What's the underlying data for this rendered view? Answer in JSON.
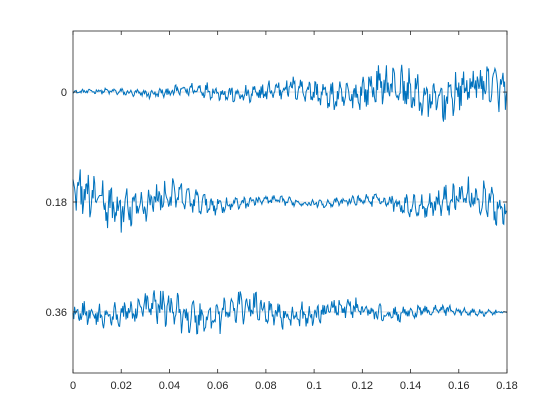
{
  "chart_data": {
    "type": "line",
    "title": "",
    "xlabel": "",
    "ylabel": "",
    "xlim": [
      0,
      0.18
    ],
    "x_ticks": [
      "0",
      "0.02",
      "0.04",
      "0.06",
      "0.08",
      "0.1",
      "0.12",
      "0.14",
      "0.16",
      "0.18"
    ],
    "x_tick_values": [
      0,
      0.02,
      0.04,
      0.06,
      0.08,
      0.1,
      0.12,
      0.14,
      0.16,
      0.18
    ],
    "y_ticks": [
      "0",
      "0.18",
      "0.36"
    ],
    "y_tick_values": [
      0,
      0.18,
      0.36
    ],
    "y_direction": "reversed",
    "ylim": [
      -0.1,
      0.46
    ],
    "grid": "horizontal baselines at each offset",
    "line_color": "#0072BD",
    "baseline_color": "#d9d9d9",
    "series": [
      {
        "offset": 0,
        "amplitude_envelope": [
          [
            0,
            0.003
          ],
          [
            0.02,
            0.006
          ],
          [
            0.04,
            0.01
          ],
          [
            0.06,
            0.014
          ],
          [
            0.08,
            0.018
          ],
          [
            0.1,
            0.022
          ],
          [
            0.12,
            0.03
          ],
          [
            0.14,
            0.038
          ],
          [
            0.16,
            0.042
          ],
          [
            0.18,
            0.035
          ]
        ]
      },
      {
        "offset": 0.18,
        "amplitude_envelope": [
          [
            0,
            0.04
          ],
          [
            0.02,
            0.04
          ],
          [
            0.04,
            0.028
          ],
          [
            0.06,
            0.015
          ],
          [
            0.08,
            0.008
          ],
          [
            0.1,
            0.006
          ],
          [
            0.12,
            0.01
          ],
          [
            0.14,
            0.018
          ],
          [
            0.16,
            0.028
          ],
          [
            0.18,
            0.036
          ]
        ]
      },
      {
        "offset": 0.36,
        "amplitude_envelope": [
          [
            0,
            0.018
          ],
          [
            0.02,
            0.022
          ],
          [
            0.04,
            0.03
          ],
          [
            0.06,
            0.03
          ],
          [
            0.08,
            0.025
          ],
          [
            0.1,
            0.022
          ],
          [
            0.12,
            0.017
          ],
          [
            0.14,
            0.012
          ],
          [
            0.16,
            0.008
          ],
          [
            0.18,
            0.004
          ]
        ]
      }
    ]
  }
}
